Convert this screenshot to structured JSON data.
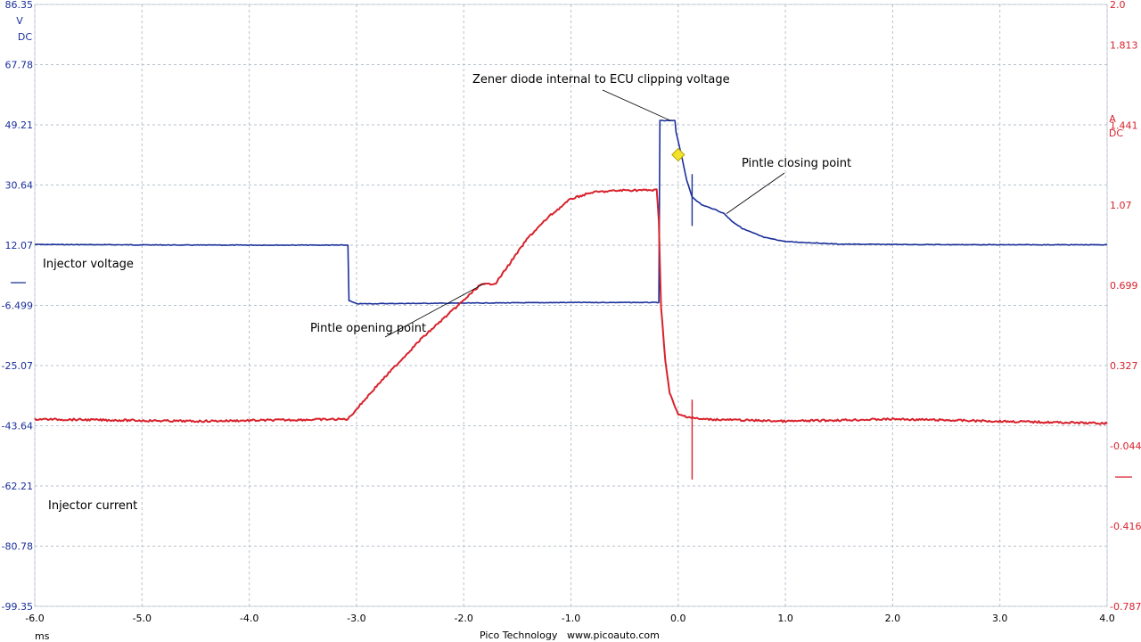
{
  "chart_data": {
    "type": "line",
    "x_axis": {
      "unit": "ms",
      "range": [
        -6.0,
        4.0
      ],
      "ticks": [
        "-6.0",
        "-5.0",
        "-4.0",
        "-3.0",
        "-2.0",
        "-1.0",
        "0.0",
        "1.0",
        "2.0",
        "3.0",
        "4.0"
      ]
    },
    "left_axis": {
      "unit": "V",
      "coupling": "DC",
      "range": [
        -99.35,
        86.35
      ],
      "ticks": [
        "86.35",
        "67.78",
        "49.21",
        "30.64",
        "12.07",
        "-6.499",
        "-25.07",
        "-43.64",
        "-62.21",
        "-80.78",
        "-99.35"
      ]
    },
    "right_axis": {
      "unit": "A",
      "coupling": "DC",
      "range": [
        -0.787,
        2.0
      ],
      "ticks": [
        "2.0",
        "1.813",
        "1.441",
        "1.07",
        "0.699",
        "0.327",
        "-0.044",
        "-0.416",
        "-0.787"
      ]
    },
    "grid": true,
    "series": [
      {
        "name": "Injector voltage",
        "axis": "left",
        "color": "#1a2f9a",
        "points": [
          [
            -6.0,
            12.3
          ],
          [
            -4.5,
            12.1
          ],
          [
            -3.08,
            12.1
          ],
          [
            -3.07,
            -5.0
          ],
          [
            -3.0,
            -6.0
          ],
          [
            -2.0,
            -5.8
          ],
          [
            -1.0,
            -5.6
          ],
          [
            -0.18,
            -5.6
          ],
          [
            -0.17,
            50.5
          ],
          [
            -0.03,
            50.5
          ],
          [
            -0.02,
            47.0
          ],
          [
            0.03,
            40.0
          ],
          [
            0.08,
            32.0
          ],
          [
            0.13,
            27.0
          ],
          [
            0.22,
            24.5
          ],
          [
            0.35,
            23.0
          ],
          [
            0.43,
            21.8
          ],
          [
            0.5,
            19.5
          ],
          [
            0.6,
            17.2
          ],
          [
            0.8,
            14.5
          ],
          [
            1.0,
            13.2
          ],
          [
            1.5,
            12.4
          ],
          [
            2.0,
            12.3
          ],
          [
            3.0,
            12.2
          ],
          [
            4.0,
            12.2
          ]
        ]
      },
      {
        "name": "Injector current",
        "axis": "right",
        "color": "#d8222c",
        "points": [
          [
            -6.0,
            0.08
          ],
          [
            -4.5,
            0.07
          ],
          [
            -3.08,
            0.08
          ],
          [
            -2.8,
            0.24
          ],
          [
            -2.4,
            0.45
          ],
          [
            -2.0,
            0.63
          ],
          [
            -1.85,
            0.7
          ],
          [
            -1.7,
            0.71
          ],
          [
            -1.6,
            0.78
          ],
          [
            -1.4,
            0.92
          ],
          [
            -1.2,
            1.02
          ],
          [
            -1.0,
            1.1
          ],
          [
            -0.8,
            1.13
          ],
          [
            -0.5,
            1.14
          ],
          [
            -0.2,
            1.14
          ],
          [
            -0.18,
            1.0
          ],
          [
            -0.16,
            0.6
          ],
          [
            -0.12,
            0.35
          ],
          [
            -0.08,
            0.2
          ],
          [
            0.0,
            0.1
          ],
          [
            0.2,
            0.08
          ],
          [
            1.0,
            0.07
          ],
          [
            2.0,
            0.08
          ],
          [
            3.0,
            0.07
          ],
          [
            4.0,
            0.06
          ]
        ]
      }
    ],
    "trigger_point": {
      "x": 0.0,
      "y": 40.0,
      "axis": "left",
      "color": "#f2e22a"
    },
    "series_labels": {
      "voltage": "Injector voltage",
      "current": "Injector current"
    },
    "annotations": [
      {
        "text": "Zener diode internal to ECU clipping voltage",
        "x": -0.07,
        "y": 50.5,
        "axis": "left"
      },
      {
        "text": "Pintle closing point",
        "x": 0.45,
        "y": 21.8,
        "axis": "left"
      },
      {
        "text": "Pintle opening point",
        "x": -1.8,
        "y": 0.71,
        "axis": "right"
      }
    ]
  },
  "footer": {
    "unit": "ms",
    "brand": "Pico Technology",
    "url": "www.picoauto.com"
  }
}
